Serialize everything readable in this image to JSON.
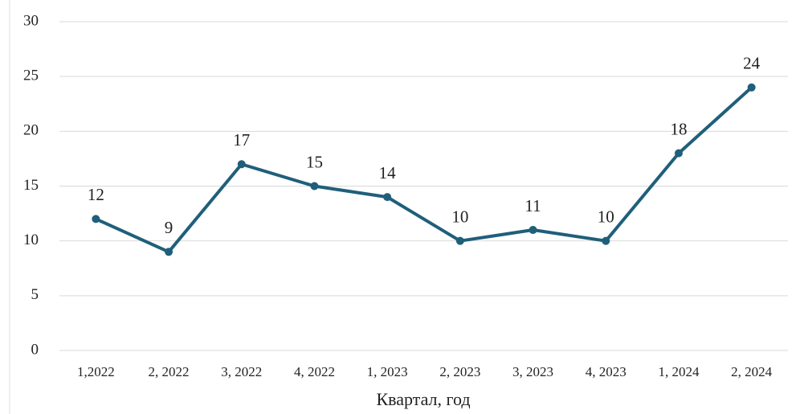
{
  "chart_data": {
    "type": "line",
    "x_label": "Квартал, год",
    "categories": [
      "1,2022",
      "2, 2022",
      "3, 2022",
      "4, 2022",
      "1, 2023",
      "2, 2023",
      "3, 2023",
      "4, 2023",
      "1, 2024",
      "2, 2024"
    ],
    "series": [
      {
        "color": "#1f5f7a",
        "values": [
          12,
          9,
          17,
          15,
          14,
          10,
          11,
          10,
          18,
          24
        ]
      }
    ],
    "ylim": [
      0,
      30
    ],
    "yticks": [
      0,
      5,
      10,
      15,
      20,
      25,
      30
    ],
    "grid": true
  }
}
